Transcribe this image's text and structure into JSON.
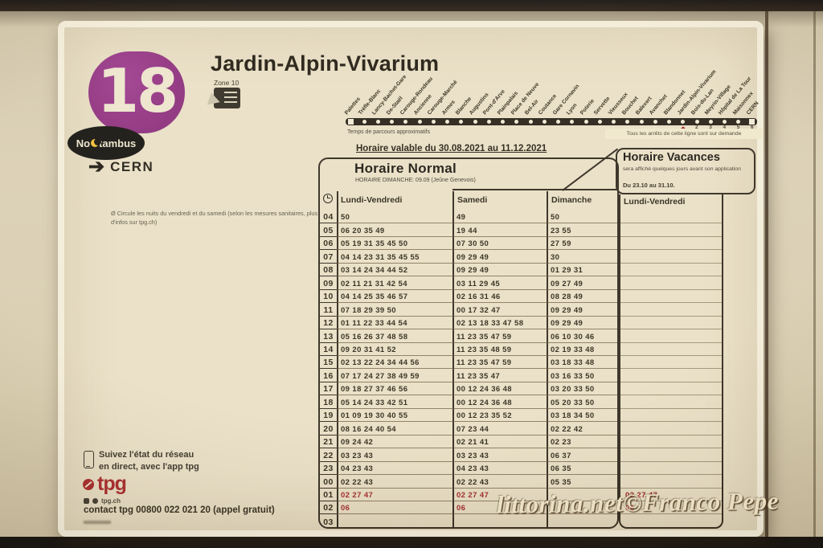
{
  "line": {
    "number": "18",
    "title": "Jardin-Alpin-Vivarium",
    "zone": "Zone 10"
  },
  "noctambus": {
    "prefix": "No",
    "suffix": "tambus"
  },
  "direction": {
    "arrow": "➔",
    "label": "CERN"
  },
  "route": {
    "stops": [
      "Palettes",
      "Trèfle-Blanc",
      "Lancy-Bachet-Gare",
      "De-Staël",
      "Carouge-Rondeau",
      "Ancienne",
      "Carouge-Marché",
      "Armes",
      "Blanche",
      "Augustins",
      "Pont-d'Arve",
      "Plainpalais",
      "Place de Neuve",
      "Bel-Air",
      "Coutance",
      "Gare Cornavin",
      "Lyon",
      "Poterie",
      "Servette",
      "Vieusseux",
      "Bouchet",
      "Balexert",
      "Avanchet",
      "Blandonnet",
      "Jardin-Alpin-Vivarium",
      "Bois-du-Lan",
      "Meyrin-Village",
      "Hôpital de La Tour",
      "Maisonnex",
      "CERN"
    ],
    "current_stop_index": 24,
    "caption_left": "Temps de parcours approximatifs",
    "caption_right": "Tous les arrêts de cette ligne sont sur demande",
    "travel_times": [
      "2",
      "3",
      "4",
      "5",
      "6"
    ]
  },
  "validity": "Horaire valable du 30.08.2021 au 11.12.2021",
  "normal": {
    "title": "Horaire Normal",
    "subtitle": "HORAIRE DIMANCHE: 09.09 (Jeûne Genevois)"
  },
  "vacances": {
    "title": "Horaire Vacances",
    "note": "sera affiché quelques jours avant son application",
    "period": "Du 23.10 au 31.10.",
    "column_header": "Lundi-Vendredi"
  },
  "table": {
    "headers": {
      "weekday": "Lundi-Vendredi",
      "saturday": "Samedi",
      "sunday": "Dimanche"
    },
    "rows": [
      {
        "hour": "04",
        "lv": "50",
        "sam": "49",
        "dim": "50",
        "vac": "",
        "red": false
      },
      {
        "hour": "05",
        "lv": "06 20 35 49",
        "sam": "19 44",
        "dim": "23 55",
        "vac": "",
        "red": false
      },
      {
        "hour": "06",
        "lv": "05 19 31 35 45 50",
        "sam": "07 30 50",
        "dim": "27 59",
        "vac": "",
        "red": false
      },
      {
        "hour": "07",
        "lv": "04 14 23 31 35 45 55",
        "sam": "09 29 49",
        "dim": "30",
        "vac": "",
        "red": false
      },
      {
        "hour": "08",
        "lv": "03 14 24 34 44 52",
        "sam": "09 29 49",
        "dim": "01 29 31",
        "vac": "",
        "red": false
      },
      {
        "hour": "09",
        "lv": "02 11 21 31 42 54",
        "sam": "03 11 29 45",
        "dim": "09 27 49",
        "vac": "",
        "red": false
      },
      {
        "hour": "10",
        "lv": "04 14 25 35 46 57",
        "sam": "02 16 31 46",
        "dim": "08 28 49",
        "vac": "",
        "red": false
      },
      {
        "hour": "11",
        "lv": "07 18 29 39 50",
        "sam": "00 17 32 47",
        "dim": "09 29 49",
        "vac": "",
        "red": false
      },
      {
        "hour": "12",
        "lv": "01 11 22 33 44 54",
        "sam": "02 13 18 33 47 58",
        "dim": "09 29 49",
        "vac": "",
        "red": false
      },
      {
        "hour": "13",
        "lv": "05 16 26 37 48 58",
        "sam": "11 23 35 47 59",
        "dim": "06 10 30 46",
        "vac": "",
        "red": false
      },
      {
        "hour": "14",
        "lv": "09 20 31 41 52",
        "sam": "11 23 35 48 59",
        "dim": "02 19 33 48",
        "vac": "",
        "red": false
      },
      {
        "hour": "15",
        "lv": "02 13 22 24 34 44 56",
        "sam": "11 23 35 47 59",
        "dim": "03 18 33 48",
        "vac": "",
        "red": false
      },
      {
        "hour": "16",
        "lv": "07 17 24 27 38 49 59",
        "sam": "11 23 35 47",
        "dim": "03 16 33 50",
        "vac": "",
        "red": false
      },
      {
        "hour": "17",
        "lv": "09 18 27 37 46 56",
        "sam": "00 12 24 36 48",
        "dim": "03 20 33 50",
        "vac": "",
        "red": false
      },
      {
        "hour": "18",
        "lv": "05 14 24 33 42 51",
        "sam": "00 12 24 36 48",
        "dim": "05 20 33 50",
        "vac": "",
        "red": false
      },
      {
        "hour": "19",
        "lv": "01 09 19 30 40 55",
        "sam": "00 12 23 35 52",
        "dim": "03 18 34 50",
        "vac": "",
        "red": false
      },
      {
        "hour": "20",
        "lv": "08 16 24 40 54",
        "sam": "07 23 44",
        "dim": "02 22 42",
        "vac": "",
        "red": false
      },
      {
        "hour": "21",
        "lv": "09 24 42",
        "sam": "02 21 41",
        "dim": "02 23",
        "vac": "",
        "red": false
      },
      {
        "hour": "22",
        "lv": "03 23 43",
        "sam": "03 23 43",
        "dim": "06 37",
        "vac": "",
        "red": false
      },
      {
        "hour": "23",
        "lv": "04 23 43",
        "sam": "04 23 43",
        "dim": "06 35",
        "vac": "",
        "red": false
      },
      {
        "hour": "00",
        "lv": "02 22 43",
        "sam": "02 22 43",
        "dim": "05 35",
        "vac": "",
        "red": false
      },
      {
        "hour": "01",
        "lv": "02 27 47",
        "sam": "02 27 47",
        "dim": "",
        "vac": "02 27 47",
        "red": true
      },
      {
        "hour": "02",
        "lv": "06",
        "sam": "06",
        "dim": "",
        "vac": "06",
        "red": true
      },
      {
        "hour": "03",
        "lv": "",
        "sam": "",
        "dim": "",
        "vac": "",
        "red": false
      }
    ]
  },
  "footnote": "Ø Circule les nuits du vendredi et du samedi (selon les mesures sanitaires, plus d'infos sur tpg.ch)",
  "footer": {
    "app_line1": "Suivez l'état du réseau",
    "app_line2": "en direct, avec l'app tpg",
    "logo_text": "tpg",
    "website": "tpg.ch",
    "contact": "contact tpg 00800 022 021 20 (appel gratuit)"
  },
  "watermark": "littorina.net©Franco Pepe",
  "colors": {
    "line_badge": "#8e2a7e",
    "night_red": "#9a1c1e",
    "tpg_red": "#a32022",
    "poster_bg": "#e8dec4"
  }
}
